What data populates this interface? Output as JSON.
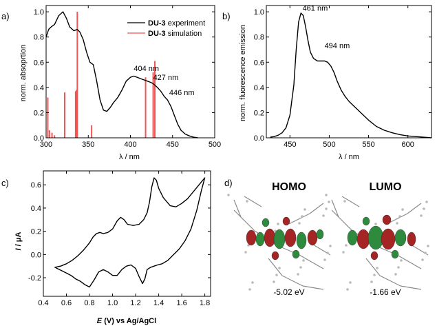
{
  "chart_data": [
    {
      "type": "line",
      "panel": "a)",
      "xlabel": "λ / nm",
      "ylabel": "norm. absoprtion",
      "xlim": [
        300,
        500
      ],
      "ylim": [
        0,
        1.05
      ],
      "xticks": [
        "300",
        "350",
        "400",
        "450",
        "500"
      ],
      "yticks": [
        "0.0",
        "0.2",
        "0.4",
        "0.6",
        "0.8",
        "1.0"
      ],
      "legend": {
        "position": "top-right",
        "entries": [
          {
            "label_bold": "DU-3",
            "label_rest": " experiment",
            "color": "#000000"
          },
          {
            "label_bold": "DU-3",
            "label_rest": " simulation",
            "color": "#ee5555"
          }
        ]
      },
      "annotations": [
        {
          "text": "404 nm",
          "x": 404,
          "y": 0.53
        },
        {
          "text": "427 nm",
          "x": 427,
          "y": 0.46
        },
        {
          "text": "446 nm",
          "x": 446,
          "y": 0.34
        }
      ],
      "series": [
        {
          "type": "line",
          "color": "#000000",
          "x": [
            300,
            303,
            306,
            310,
            315,
            320,
            324,
            328,
            333,
            337,
            340,
            344,
            348,
            352,
            356,
            360,
            364,
            368,
            372,
            376,
            380,
            385,
            390,
            395,
            400,
            404,
            408,
            412,
            416,
            420,
            424,
            427,
            432,
            436,
            440,
            444,
            448,
            452,
            456,
            460,
            465,
            470,
            475,
            480
          ],
          "y": [
            0.8,
            0.86,
            0.88,
            0.9,
            0.97,
            1.0,
            0.95,
            0.88,
            0.85,
            0.86,
            0.84,
            0.78,
            0.68,
            0.6,
            0.58,
            0.45,
            0.3,
            0.22,
            0.21,
            0.24,
            0.28,
            0.32,
            0.38,
            0.45,
            0.48,
            0.49,
            0.48,
            0.47,
            0.46,
            0.45,
            0.44,
            0.43,
            0.4,
            0.37,
            0.33,
            0.3,
            0.25,
            0.18,
            0.11,
            0.06,
            0.03,
            0.015,
            0.005,
            0.0
          ]
        },
        {
          "type": "stick",
          "color": "#ee5555",
          "x": [
            302,
            304,
            307,
            310,
            322,
            335,
            336,
            337,
            354,
            418,
            427,
            429
          ],
          "y": [
            0.32,
            0.06,
            0.04,
            0.02,
            0.36,
            0.37,
            0.38,
            1.0,
            0.1,
            0.48,
            0.52,
            0.61
          ]
        }
      ]
    },
    {
      "type": "line",
      "panel": "b)",
      "xlabel": "λ / nm",
      "ylabel": "norm. fluorescence emission",
      "xlim": [
        420,
        630
      ],
      "ylim": [
        0,
        1.05
      ],
      "xticks": [
        "450",
        "500",
        "550",
        "600"
      ],
      "yticks": [
        "0.0",
        "0.2",
        "0.4",
        "0.6",
        "0.8",
        "1.0"
      ],
      "annotations": [
        {
          "text": "461 nm",
          "x": 466,
          "y": 1.01
        },
        {
          "text": "494 nm",
          "x": 494,
          "y": 0.71
        }
      ],
      "series": [
        {
          "color": "#000000",
          "x": [
            425,
            430,
            435,
            440,
            445,
            450,
            455,
            458,
            461,
            464,
            467,
            470,
            473,
            476,
            480,
            485,
            490,
            494,
            498,
            502,
            506,
            510,
            515,
            520,
            525,
            530,
            540,
            550,
            560,
            570,
            580,
            590,
            600,
            610,
            620,
            630
          ],
          "y": [
            0.005,
            0.01,
            0.02,
            0.04,
            0.08,
            0.18,
            0.42,
            0.7,
            0.92,
            0.99,
            0.97,
            0.88,
            0.77,
            0.68,
            0.63,
            0.61,
            0.61,
            0.61,
            0.6,
            0.57,
            0.52,
            0.45,
            0.38,
            0.33,
            0.29,
            0.26,
            0.2,
            0.14,
            0.09,
            0.06,
            0.04,
            0.025,
            0.015,
            0.01,
            0.005,
            0.0
          ]
        }
      ]
    },
    {
      "type": "line",
      "panel": "c)",
      "xlabel_italic": "E",
      "xlabel_rest": " (V) vs Ag/AgCl",
      "ylabel_italic": "I",
      "ylabel_rest": " / μA",
      "xlim": [
        0.4,
        1.85
      ],
      "ylim": [
        -0.36,
        0.72
      ],
      "xticks": [
        "0.4",
        "0.6",
        "0.8",
        "1.0",
        "1.2",
        "1.4",
        "1.6",
        "1.8"
      ],
      "yticks": [
        "-0.2",
        "0.0",
        "0.2",
        "0.4",
        "0.6"
      ],
      "series": [
        {
          "color": "#000000",
          "x": [
            0.5,
            0.55,
            0.6,
            0.65,
            0.7,
            0.75,
            0.8,
            0.83,
            0.86,
            0.89,
            0.92,
            0.96,
            1.0,
            1.04,
            1.07,
            1.1,
            1.13,
            1.18,
            1.23,
            1.27,
            1.3,
            1.32,
            1.34,
            1.36,
            1.38,
            1.4,
            1.44,
            1.5,
            1.55,
            1.6,
            1.65,
            1.7,
            1.75,
            1.8,
            1.8,
            1.77,
            1.73,
            1.68,
            1.63,
            1.58,
            1.53,
            1.48,
            1.43,
            1.39,
            1.36,
            1.33,
            1.3,
            1.28,
            1.26,
            1.23,
            1.2,
            1.16,
            1.12,
            1.08,
            1.04,
            1.0,
            0.96,
            0.92,
            0.88,
            0.84,
            0.8,
            0.76,
            0.72,
            0.68,
            0.64,
            0.6,
            0.56,
            0.52,
            0.5
          ],
          "y": [
            -0.11,
            -0.1,
            -0.08,
            -0.05,
            -0.01,
            0.04,
            0.1,
            0.15,
            0.18,
            0.19,
            0.18,
            0.19,
            0.22,
            0.29,
            0.32,
            0.3,
            0.26,
            0.25,
            0.26,
            0.3,
            0.36,
            0.45,
            0.58,
            0.66,
            0.64,
            0.57,
            0.49,
            0.42,
            0.41,
            0.44,
            0.48,
            0.54,
            0.6,
            0.66,
            0.66,
            0.55,
            0.38,
            0.22,
            0.12,
            0.05,
            0.0,
            -0.05,
            -0.08,
            -0.09,
            -0.1,
            -0.11,
            -0.13,
            -0.21,
            -0.25,
            -0.19,
            -0.12,
            -0.09,
            -0.1,
            -0.13,
            -0.18,
            -0.18,
            -0.15,
            -0.13,
            -0.15,
            -0.22,
            -0.28,
            -0.26,
            -0.23,
            -0.21,
            -0.18,
            -0.16,
            -0.14,
            -0.12,
            -0.11
          ]
        }
      ]
    }
  ],
  "panel_d": {
    "letter": "d)",
    "homo": {
      "title": "HOMO",
      "energy": "-5.02 eV"
    },
    "lumo": {
      "title": "LUMO",
      "energy": "-1.66 eV"
    }
  }
}
